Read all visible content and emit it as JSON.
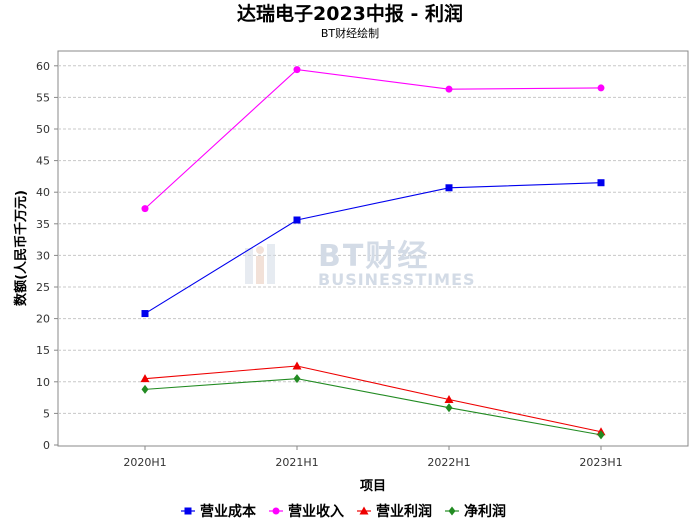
{
  "chart_data": {
    "type": "line",
    "title": "达瑞电子2023中报 - 利润",
    "subtitle": "BT财经绘制",
    "xlabel": "项目",
    "ylabel": "数额(人民币千万元)",
    "categories": [
      "2020H1",
      "2021H1",
      "2022H1",
      "2023H1"
    ],
    "ylim": [
      0,
      62
    ],
    "yticks": [
      0,
      5,
      10,
      15,
      20,
      25,
      30,
      35,
      40,
      45,
      50,
      55,
      60
    ],
    "grid": true,
    "legend_position": "bottom",
    "series": [
      {
        "name": "营业成本",
        "color": "#0000ee",
        "marker": "square",
        "values": [
          20.8,
          35.6,
          40.7,
          41.5
        ]
      },
      {
        "name": "营业收入",
        "color": "#ff00ff",
        "marker": "circle",
        "values": [
          37.4,
          59.4,
          56.3,
          56.5
        ]
      },
      {
        "name": "营业利润",
        "color": "#ee0000",
        "marker": "triangle",
        "values": [
          10.5,
          12.5,
          7.2,
          2.1
        ]
      },
      {
        "name": "净利润",
        "color": "#228b22",
        "marker": "diamond",
        "values": [
          8.8,
          10.5,
          5.9,
          1.6
        ]
      }
    ],
    "watermark": {
      "main": "BT财经",
      "sub": "BUSINESSTIMES"
    }
  }
}
